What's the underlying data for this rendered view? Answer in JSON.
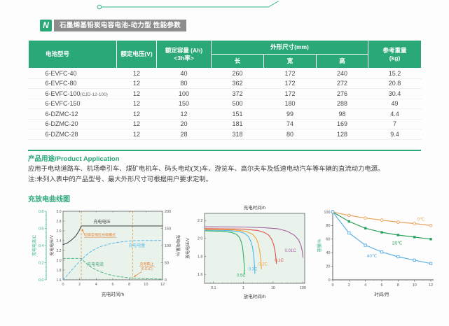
{
  "page": {
    "logo_letter": "N",
    "title": "石墨烯基铅炭电容电池-动力型 性能参数"
  },
  "colors": {
    "accent_green": "#2ba878",
    "badge_gray": "#8c8c8c",
    "annotation_orange": "#e87e2e",
    "axis_teal": "#2fae8c"
  },
  "spec_table": {
    "headers": {
      "model": "电池型号",
      "voltage": "额定电压(V)",
      "capacity_line1": "额定容量 (Ah)",
      "capacity_line2": "<3h率>",
      "dimensions": "外形尺寸(mm)",
      "length": "长",
      "width": "宽",
      "height": "高",
      "weight_line1": "参考重量",
      "weight_line2": "(kg)"
    },
    "rows": [
      {
        "model": "6-EVFC-40",
        "suffix": "",
        "voltage": "12",
        "capacity": "40",
        "length": "260",
        "width": "172",
        "height": "240",
        "weight": "15.2"
      },
      {
        "model": "6-EVFC-80",
        "suffix": "",
        "voltage": "12",
        "capacity": "80",
        "length": "362",
        "width": "172",
        "height": "272",
        "weight": "20.8"
      },
      {
        "model": "6-EVFC-100",
        "suffix": "(CJD-12-100)",
        "voltage": "12",
        "capacity": "100",
        "length": "372",
        "width": "172",
        "height": "276",
        "weight": "30.4"
      },
      {
        "model": "6-EVFC-150",
        "suffix": "",
        "voltage": "12",
        "capacity": "150",
        "length": "500",
        "width": "180",
        "height": "288",
        "weight": "49"
      },
      {
        "model": "6-DZMC-12",
        "suffix": "",
        "voltage": "12",
        "capacity": "12",
        "length": "151",
        "width": "99",
        "height": "98",
        "weight": "4.4"
      },
      {
        "model": "6-DZMC-20",
        "suffix": "",
        "voltage": "12",
        "capacity": "20",
        "length": "181",
        "width": "74",
        "height": "169",
        "weight": "7"
      },
      {
        "model": "6-DZMC-28",
        "suffix": "",
        "voltage": "12",
        "capacity": "28",
        "length": "318",
        "width": "80",
        "height": "128",
        "weight": "9.4"
      }
    ]
  },
  "application": {
    "title": "产品用途/Product Application",
    "body": "应用于电动道路车、机场牵引车、煤矿电机车、码头电动(叉)车、游览车、高尔夫车及低速电动汽车等车辆的直流动力电源。",
    "note": "注:未列入表中的产品型号、最大外形尺寸可根据用户要求定制。"
  },
  "curves_section": {
    "title": "充放电曲线图"
  },
  "chart_data": [
    {
      "type": "line",
      "xlabel": "充电时间/h",
      "x_range": [
        0,
        12
      ],
      "x_ticks": [
        0,
        2,
        4,
        6,
        8,
        10,
        12
      ],
      "axis_voltage": {
        "label": "充电电压/V",
        "range": [
          1.6,
          3.0
        ],
        "ticks": [
          1.6,
          1.8,
          2.0,
          2.2,
          2.4,
          2.6,
          2.8,
          3.0
        ]
      },
      "axis_current": {
        "label": "充电电流/C",
        "range": [
          0,
          0.8
        ],
        "ticks": [
          0.0,
          0.2,
          0.4,
          0.6,
          0.8
        ],
        "color": "#2fae8c"
      },
      "axis_percent": {
        "label": "充电电量/%",
        "range": [
          0,
          200
        ],
        "ticks": [
          0,
          50,
          100,
          150,
          200
        ]
      },
      "series": [
        {
          "name": "充电电压",
          "axis": "voltage",
          "style": "solid",
          "color": "#3d3d3d",
          "points": [
            [
              0,
              2.32
            ],
            [
              0.5,
              2.35
            ],
            [
              1,
              2.41
            ],
            [
              1.5,
              2.49
            ],
            [
              1.9,
              2.59
            ],
            [
              2.2,
              2.7
            ],
            [
              12,
              2.7
            ]
          ]
        },
        {
          "name": "充电电流",
          "axis": "current",
          "style": "dashed",
          "color": "#53b787",
          "points": [
            [
              0,
              0.25
            ],
            [
              2.2,
              0.25
            ],
            [
              2.6,
              0.21
            ],
            [
              3.2,
              0.16
            ],
            [
              4,
              0.115
            ],
            [
              5,
              0.075
            ],
            [
              6,
              0.05
            ],
            [
              7,
              0.034
            ],
            [
              8,
              0.024
            ],
            [
              8.4,
              0.02
            ],
            [
              10,
              0.013
            ],
            [
              12,
              0.009
            ]
          ]
        },
        {
          "name": "充电电量",
          "axis": "percent",
          "style": "dashed",
          "color": "#5cb9e8",
          "points": [
            [
              0,
              0
            ],
            [
              0.5,
              13
            ],
            [
              1,
              27
            ],
            [
              1.5,
              41
            ],
            [
              2,
              53
            ],
            [
              2.2,
              58
            ],
            [
              2.8,
              72
            ],
            [
              3.5,
              85
            ],
            [
              4.5,
              97
            ],
            [
              5.5,
              104
            ],
            [
              6.5,
              109
            ],
            [
              7.5,
              112
            ],
            [
              8.4,
              114
            ],
            [
              10,
              115
            ],
            [
              12,
              115
            ]
          ]
        }
      ],
      "vlines": [
        {
          "x": 2.2
        },
        {
          "x": 8.4
        }
      ],
      "vline_color": "#e8923f",
      "annotations": {
        "cv_switch": "切换至恒压充电模式",
        "cutoff_line1": "充电截止",
        "cutoff_line2": "(0.01C)",
        "color": "#e87e2e"
      }
    },
    {
      "type": "line",
      "x_scale": "log",
      "top_label": "充电时间/h",
      "xlabel": "放电时间/h",
      "ylabel": "放电电压/V",
      "x_range": [
        0.05,
        115
      ],
      "x_ticks": [
        0.1,
        1,
        10,
        100
      ],
      "y_range": [
        1.5,
        2.28
      ],
      "y_ticks": [
        1.6,
        1.8,
        2.0,
        2.2
      ],
      "series": [
        {
          "name": "0.5C",
          "color": "#2eaf62",
          "label_pos": [
            0.85,
            1.575
          ],
          "points": [
            [
              0.05,
              2.085
            ],
            [
              0.2,
              2.08
            ],
            [
              0.4,
              2.068
            ],
            [
              0.6,
              2.045
            ],
            [
              0.75,
              2.01
            ],
            [
              0.85,
              1.965
            ],
            [
              0.95,
              1.9
            ],
            [
              1.02,
              1.8
            ],
            [
              1.08,
              1.68
            ],
            [
              1.1,
              1.6
            ]
          ]
        },
        {
          "name": "0.3C",
          "color": "#45b8e8",
          "label_pos": [
            2.1,
            1.645
          ],
          "points": [
            [
              0.05,
              2.095
            ],
            [
              0.3,
              2.09
            ],
            [
              0.7,
              2.078
            ],
            [
              1.1,
              2.058
            ],
            [
              1.5,
              2.02
            ],
            [
              1.8,
              1.965
            ],
            [
              2.05,
              1.9
            ],
            [
              2.25,
              1.8
            ],
            [
              2.4,
              1.68
            ],
            [
              2.45,
              1.61
            ]
          ]
        },
        {
          "name": "0.2C",
          "color": "#f0a33a",
          "label_pos": [
            4.6,
            1.7
          ],
          "points": [
            [
              0.05,
              2.1
            ],
            [
              0.5,
              2.095
            ],
            [
              1.2,
              2.08
            ],
            [
              2,
              2.05
            ],
            [
              2.7,
              2.0
            ],
            [
              3.2,
              1.94
            ],
            [
              3.6,
              1.85
            ],
            [
              3.9,
              1.75
            ],
            [
              4.05,
              1.66
            ]
          ]
        },
        {
          "name": "0.1C",
          "color": "#e05247",
          "label_pos": [
            16,
            1.74
          ],
          "points": [
            [
              0.05,
              2.11
            ],
            [
              1,
              2.105
            ],
            [
              3,
              2.09
            ],
            [
              5,
              2.068
            ],
            [
              7,
              2.04
            ],
            [
              9,
              1.99
            ],
            [
              10.5,
              1.93
            ],
            [
              12,
              1.83
            ],
            [
              13,
              1.72
            ]
          ]
        },
        {
          "name": "0.01C",
          "color": "#a85d9e",
          "label_pos": [
            38,
            1.85
          ],
          "points": [
            [
              0.05,
              2.13
            ],
            [
              1,
              2.128
            ],
            [
              5,
              2.12
            ],
            [
              15,
              2.108
            ],
            [
              30,
              2.08
            ],
            [
              50,
              2.04
            ],
            [
              70,
              1.99
            ],
            [
              85,
              1.93
            ],
            [
              95,
              1.86
            ],
            [
              100,
              1.79
            ]
          ]
        }
      ]
    },
    {
      "type": "line",
      "xlabel": "时间/月",
      "ylabel": "容量/%",
      "ylabel_color": "#2fae8c",
      "x": [
        0,
        2,
        4,
        6,
        8,
        10,
        12
      ],
      "x_ticks": [
        0,
        2,
        4,
        6,
        8,
        10,
        12
      ],
      "y_range": [
        0,
        100
      ],
      "y_ticks": [
        0,
        20,
        40,
        60,
        80,
        100
      ],
      "series": [
        {
          "name": "0℃",
          "color": "#e8a45c",
          "marker": "circle-open",
          "label_pos": [
            10.8,
            87
          ],
          "values": [
            100,
            95,
            91,
            88,
            85,
            83,
            80
          ]
        },
        {
          "name": "20℃",
          "color": "#2aa25d",
          "marker": "square-filled",
          "label_pos": [
            7.9,
            52
          ],
          "values": [
            100,
            86,
            76,
            70,
            66,
            63,
            60
          ]
        },
        {
          "name": "40℃",
          "color": "#5fb0e2",
          "marker": "square-open",
          "label_pos": [
            4.8,
            33
          ],
          "values": [
            100,
            69,
            51,
            41,
            34,
            29,
            24
          ]
        }
      ]
    }
  ]
}
